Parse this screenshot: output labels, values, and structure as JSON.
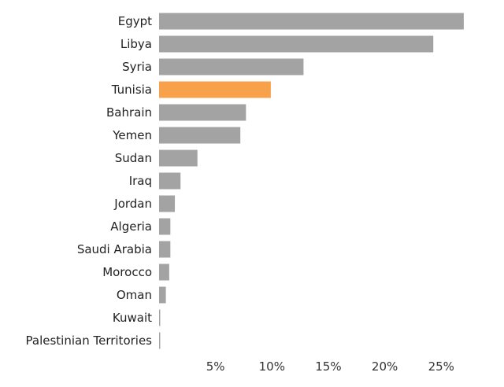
{
  "chart_data": {
    "type": "bar",
    "orientation": "horizontal",
    "categories": [
      "Egypt",
      "Libya",
      "Syria",
      "Tunisia",
      "Bahrain",
      "Yemen",
      "Sudan",
      "Iraq",
      "Jordan",
      "Algeria",
      "Saudi Arabia",
      "Morocco",
      "Oman",
      "Kuwait",
      "Palestinian Territories"
    ],
    "values": [
      27.0,
      24.3,
      12.8,
      9.9,
      7.7,
      7.2,
      3.4,
      1.9,
      1.4,
      1.0,
      1.0,
      0.9,
      0.6,
      0.1,
      0.1
    ],
    "highlight": "Tunisia",
    "colors": {
      "bar": "#a3a3a3",
      "highlight": "#f7a14a"
    },
    "xticks": [
      5,
      10,
      15,
      20,
      25
    ],
    "xtick_labels": [
      "5%",
      "10%",
      "15%",
      "20%",
      "25%"
    ],
    "xlim": [
      0,
      27.5
    ],
    "grid": false,
    "title": "",
    "xlabel": "",
    "ylabel": ""
  }
}
